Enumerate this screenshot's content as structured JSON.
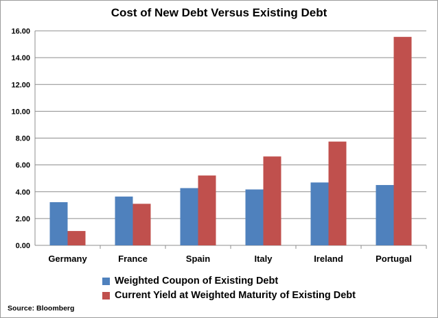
{
  "chart_data": {
    "type": "bar",
    "title": "Cost of New Debt Versus Existing Debt",
    "categories": [
      "Germany",
      "France",
      "Spain",
      "Italy",
      "Ireland",
      "Portugal"
    ],
    "series": [
      {
        "name": "Weighted Coupon of Existing Debt",
        "color": "#4f81bd",
        "values": [
          3.22,
          3.64,
          4.27,
          4.17,
          4.69,
          4.5
        ]
      },
      {
        "name": "Current Yield at Weighted Maturity of Existing Debt",
        "color": "#c0504d",
        "values": [
          1.07,
          3.1,
          5.21,
          6.63,
          7.74,
          15.55
        ]
      }
    ],
    "ylim": [
      0,
      16
    ],
    "yticks": [
      "0.00",
      "2.00",
      "4.00",
      "6.00",
      "8.00",
      "10.00",
      "12.00",
      "14.00",
      "16.00"
    ],
    "xlabel": "",
    "ylabel": "",
    "grid": true,
    "legend_position": "bottom",
    "source": "Source: Bloomberg"
  }
}
